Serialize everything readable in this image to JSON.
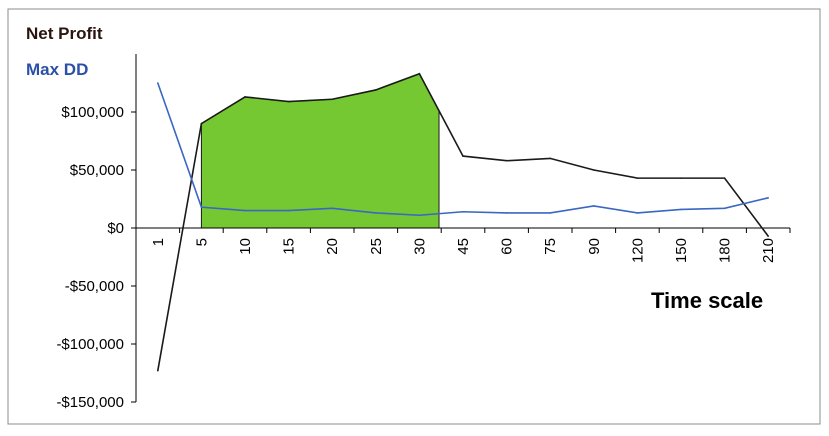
{
  "chart_data": {
    "type": "line",
    "series_labels": [
      "Net Profit",
      "Max DD"
    ],
    "xlabel": "Time scale",
    "categories": [
      "1",
      "5",
      "10",
      "15",
      "20",
      "25",
      "30",
      "45",
      "60",
      "75",
      "90",
      "120",
      "150",
      "180",
      "210"
    ],
    "y_tick_labels": [
      "$100,000",
      "$50,000",
      "$0",
      "-$50,000",
      "-$100,000",
      "-$150,000"
    ],
    "y_ticks": [
      100000,
      50000,
      0,
      -50000,
      -100000,
      -150000
    ],
    "ylim": [
      -150000,
      150000
    ],
    "series": [
      {
        "name": "Net Profit",
        "color": "#1a1a1a",
        "values": [
          -123000,
          90000,
          113000,
          109000,
          111000,
          119000,
          133000,
          62000,
          58000,
          60000,
          50000,
          43000,
          43000,
          43000,
          -7000
        ]
      },
      {
        "name": "Max DD",
        "color": "#3a66c4",
        "values": [
          125000,
          18000,
          15000,
          15000,
          17000,
          13000,
          11000,
          14000,
          13000,
          13000,
          19000,
          13000,
          16000,
          17000,
          26000
        ]
      }
    ],
    "highlight": {
      "from_category": "5",
      "to_category": "30",
      "color": "#76c832"
    }
  }
}
